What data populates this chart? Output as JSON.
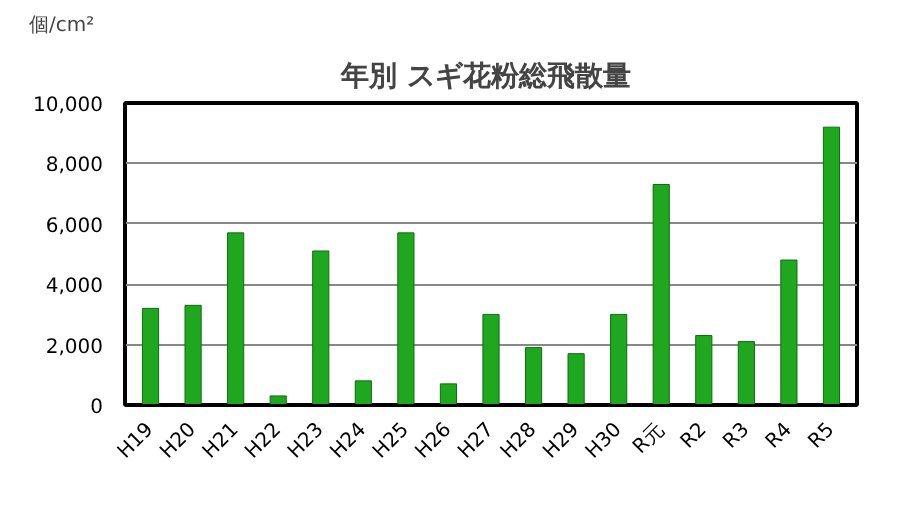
{
  "chart_data": {
    "type": "bar",
    "title": "年別  スギ花粉総飛散量",
    "ylabel": "個/cm²",
    "categories": [
      "H19",
      "H20",
      "H21",
      "H22",
      "H23",
      "H24",
      "H25",
      "H26",
      "H27",
      "H28",
      "H29",
      "H30",
      "R元",
      "R2",
      "R3",
      "R4",
      "R5"
    ],
    "values": [
      3200,
      3300,
      5700,
      300,
      5100,
      800,
      5700,
      700,
      3000,
      1900,
      1700,
      3000,
      7300,
      2300,
      2100,
      4800,
      9200
    ],
    "color": "#1fa81f",
    "ylim": [
      0,
      10000
    ],
    "yticks": [
      {
        "value": 0,
        "label": "0"
      },
      {
        "value": 2000,
        "label": "2,000"
      },
      {
        "value": 4000,
        "label": "4,000"
      },
      {
        "value": 6000,
        "label": "6,000"
      },
      {
        "value": 8000,
        "label": "8,000"
      },
      {
        "value": 10000,
        "label": "10,000"
      }
    ],
    "grid": "y"
  }
}
